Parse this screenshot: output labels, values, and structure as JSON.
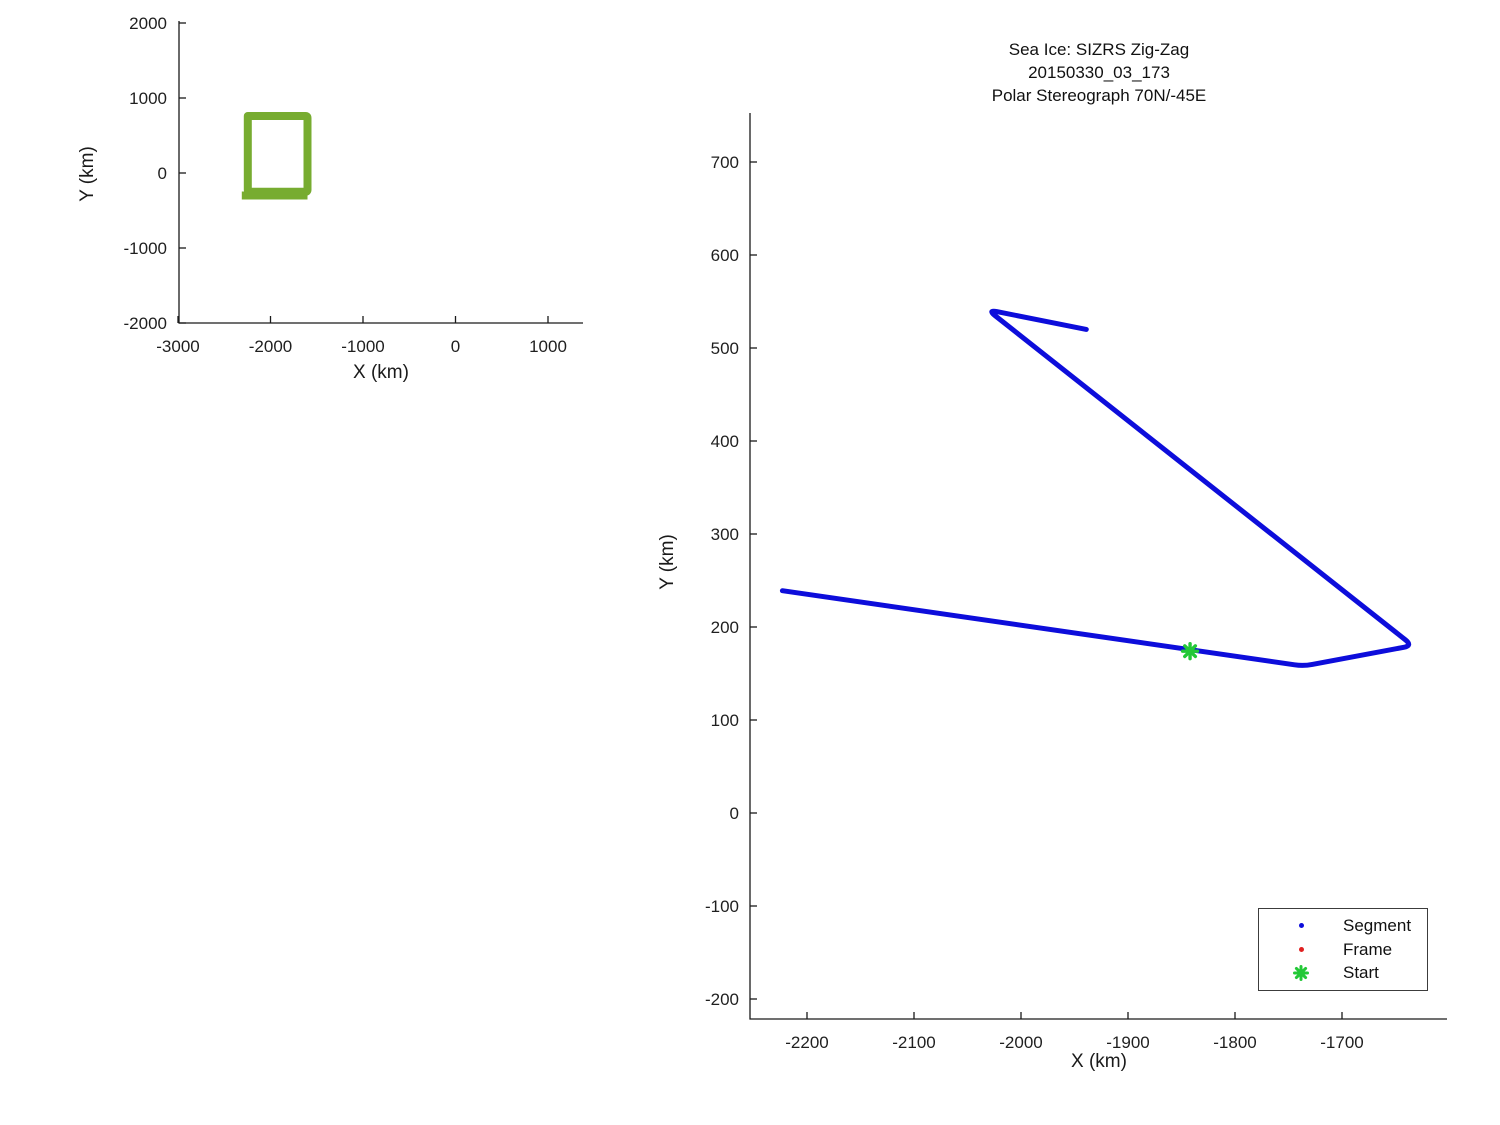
{
  "figure": {
    "background": "#ffffff",
    "title_lines": [
      "Sea Ice: SIZRS Zig-Zag",
      "20150330_03_173",
      "Polar Stereograph 70N/-45E"
    ]
  },
  "colors": {
    "track_blue": "#0d0ddb",
    "start_green": "#23c837",
    "frame_red": "#e02020",
    "region_green": "#77ac30",
    "axis": "#1a1a1a",
    "text": "#1f1f1f"
  },
  "legend": {
    "position": "southeast",
    "items": [
      {
        "label": "Segment",
        "marker": "dot",
        "color": "#0d0ddb"
      },
      {
        "label": "Frame",
        "marker": "dot",
        "color": "#e02020"
      },
      {
        "label": "Start",
        "marker": "asterisk",
        "color": "#23c837"
      }
    ]
  },
  "chart_data": [
    {
      "id": "overview",
      "type": "line",
      "title": "",
      "xlabel": "X (km)",
      "ylabel": "Y (km)",
      "xlim": [
        -3000,
        1380
      ],
      "ylim": [
        -2000,
        2000
      ],
      "x_ticks": [
        -3000,
        -2000,
        -1000,
        0,
        1000
      ],
      "y_ticks": [
        2000,
        1000,
        0,
        -1000,
        -2000
      ],
      "grid": false,
      "series": [
        {
          "name": "region-box",
          "color": "#77ac30",
          "linewidth": 8,
          "closed": true,
          "rounded": 2,
          "linecap": "butt",
          "points": [
            [
              -2245,
              760
            ],
            [
              -1600,
              760
            ],
            [
              -1600,
              -250
            ],
            [
              -2245,
              -250
            ]
          ]
        },
        {
          "name": "region-box-closing-overlap",
          "color": "#77ac30",
          "linewidth": 8,
          "closed": false,
          "rounded": 0,
          "linecap": "butt",
          "points": [
            [
              -2310,
              -300
            ],
            [
              -1600,
              -300
            ]
          ]
        }
      ]
    },
    {
      "id": "track",
      "type": "line",
      "title": "Sea Ice: SIZRS Zig-Zag  20150330_03_173  Polar Stereograph 70N/-45E",
      "xlabel": "X (km)",
      "ylabel": "Y (km)",
      "xlim": [
        -2253,
        -1602
      ],
      "ylim": [
        -221,
        753
      ],
      "x_ticks": [
        -2200,
        -2100,
        -2000,
        -1900,
        -1800,
        -1700
      ],
      "y_ticks": [
        700,
        600,
        500,
        400,
        300,
        200,
        100,
        0,
        -100,
        -200
      ],
      "grid": false,
      "legend_position": "southeast",
      "series": [
        {
          "name": "Segment",
          "color": "#0d0ddb",
          "linewidth": 5,
          "closed": false,
          "rounded": 9,
          "linecap": "round",
          "points": [
            [
              -1939,
              520
            ],
            [
              -2031,
              541
            ],
            [
              -1634,
              180
            ],
            [
              -1736,
              158
            ],
            [
              -2223,
              239
            ]
          ]
        },
        {
          "name": "Start",
          "color": "#23c837",
          "marker": "asterisk",
          "marker_size": 15,
          "points": [
            [
              -1842,
              174
            ]
          ]
        }
      ]
    }
  ]
}
